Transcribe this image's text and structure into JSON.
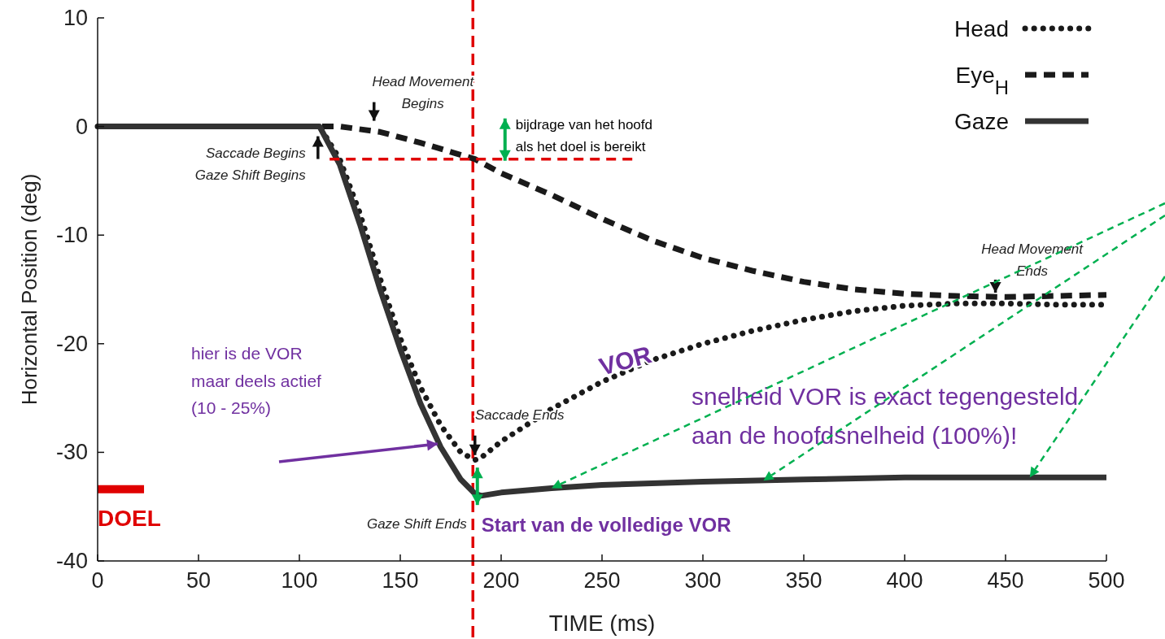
{
  "chart_data": {
    "type": "line",
    "xlabel": "TIME (ms)",
    "ylabel": "Horizontal Position (deg)",
    "xlim": [
      0,
      500
    ],
    "ylim": [
      -40,
      10
    ],
    "xticks": [
      0,
      50,
      100,
      150,
      200,
      250,
      300,
      350,
      400,
      450,
      500
    ],
    "yticks": [
      -40,
      -30,
      -20,
      -10,
      0,
      10
    ],
    "legend": "top right",
    "series": [
      {
        "name": "Head",
        "color": "#1a1a1a",
        "line_style": "dotted",
        "x": [
          0,
          50,
          100,
          110,
          120,
          130,
          140,
          150,
          160,
          170,
          180,
          187,
          190,
          200,
          225,
          250,
          275,
          300,
          325,
          350,
          375,
          400,
          425,
          450,
          475,
          500
        ],
        "values": [
          0,
          0,
          0,
          0,
          -3,
          -8,
          -14,
          -19.5,
          -24,
          -27.5,
          -30,
          -30.7,
          -30.5,
          -29,
          -26,
          -23.5,
          -21.5,
          -20,
          -18.8,
          -17.8,
          -17,
          -16.5,
          -16.3,
          -16.3,
          -16.4,
          -16.4
        ]
      },
      {
        "name": "Eye$_{H}$",
        "color": "#1a1a1a",
        "line_style": "dashed",
        "x": [
          0,
          50,
          100,
          120,
          140,
          160,
          187,
          200,
          225,
          250,
          275,
          300,
          325,
          350,
          375,
          400,
          425,
          450,
          475,
          500
        ],
        "values": [
          0,
          0,
          0,
          0,
          -0.5,
          -1.5,
          -3,
          -4.3,
          -6.3,
          -8.5,
          -10.5,
          -12.1,
          -13.3,
          -14.3,
          -15,
          -15.4,
          -15.6,
          -15.7,
          -15.6,
          -15.5
        ]
      },
      {
        "name": "Gaze",
        "color": "#333333",
        "line_style": "solid",
        "x": [
          0,
          50,
          100,
          110,
          120,
          130,
          140,
          150,
          160,
          170,
          180,
          187,
          190,
          200,
          225,
          250,
          300,
          350,
          400,
          450,
          500
        ],
        "values": [
          0,
          0,
          0,
          0,
          -3.5,
          -9,
          -15,
          -20.5,
          -25.5,
          -29.5,
          -32.5,
          -33.8,
          -34,
          -33.7,
          -33.3,
          -33,
          -32.7,
          -32.5,
          -32.3,
          -32.3,
          -32.3
        ]
      },
      {
        "color": "#e00000",
        "line_style": "dashed",
        "x": [
          115,
          265
        ],
        "values": [
          -3,
          -3
        ]
      },
      {
        "name": "DOEL",
        "color": "#e00000",
        "line_style": "solid",
        "x": [
          0,
          23
        ],
        "values": [
          -33.4,
          -33.4
        ]
      }
    ],
    "ref_lines": [
      {
        "axis": "x",
        "value": 186,
        "color": "#e00000",
        "line_style": "dashed"
      }
    ],
    "annotations": [
      {
        "text": "Head Movement\nBegins",
        "x": 137,
        "y": 0
      },
      {
        "text": "Saccade Begins\nGaze Shift Begins",
        "x": 108,
        "y": 0
      },
      {
        "text": "bijdrage van het hoofd\nals het doel is bereikt",
        "x": 187,
        "y": -3
      },
      {
        "text": "Head Movement\nEnds",
        "x": 445,
        "y": -15.6
      },
      "VOR",
      "hier is de VOR\nmaar deels actief\n(10 - 25%)",
      {
        "text": "Saccade Ends",
        "x": 187,
        "y": -30.7
      },
      {
        "text": "Gaze Shift Ends",
        "x": 187,
        "y": -33.8
      },
      {
        "text": "Start van de volledige VOR",
        "x": 187,
        "y": -33.8
      },
      "snelheid VOR is exact tegengesteld\naan de hoofdsnelheid (100%)!"
    ]
  }
}
